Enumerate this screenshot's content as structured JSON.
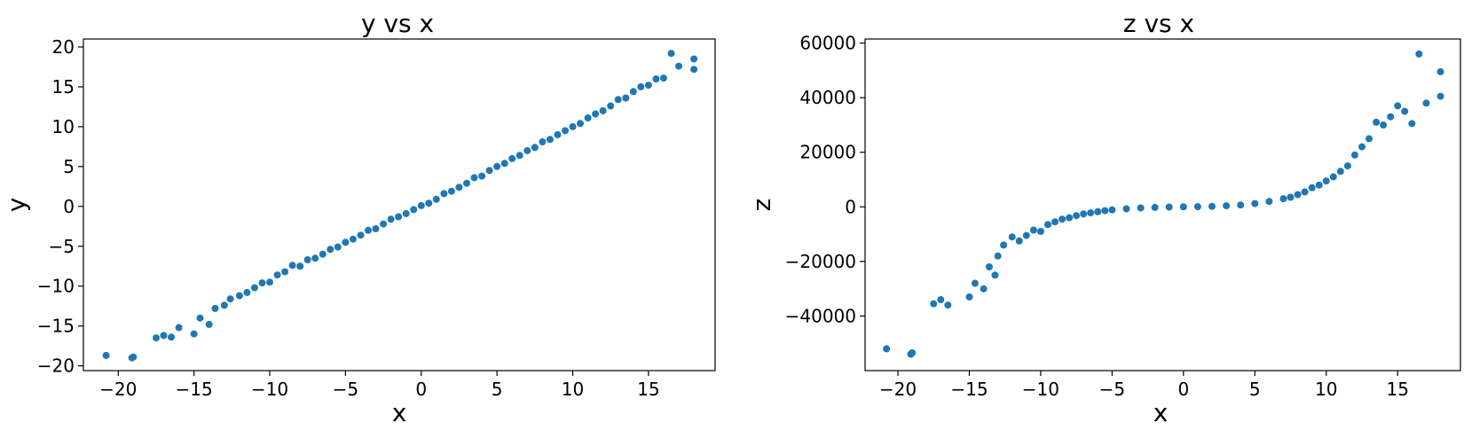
{
  "chart_data": [
    {
      "type": "scatter",
      "title": "y vs x",
      "xlabel": "x",
      "ylabel": "y",
      "xlim": [
        -22.3,
        19.4
      ],
      "ylim": [
        -20.6,
        21.0
      ],
      "xticks": [
        -20,
        -15,
        -10,
        -5,
        0,
        5,
        10,
        15
      ],
      "yticks": [
        -20,
        -15,
        -10,
        -5,
        0,
        5,
        10,
        15,
        20
      ],
      "grid": false,
      "color": "#1f77b4",
      "series": [
        {
          "x": [
            -20.8,
            -19.1,
            -19.0,
            -17.5,
            -17.0,
            -16.5,
            -16.0,
            -15.0,
            -14.6,
            -14.0,
            -13.6,
            -13.0,
            -12.6,
            -12.0,
            -11.5,
            -11.0,
            -10.5,
            -10.0,
            -9.5,
            -9.0,
            -8.5,
            -8.0,
            -7.5,
            -7.0,
            -6.5,
            -6.0,
            -5.5,
            -5.0,
            -4.5,
            -4.0,
            -3.5,
            -3.0,
            -2.5,
            -2.0,
            -1.5,
            -1.0,
            -0.5,
            0.0,
            0.5,
            1.0,
            1.5,
            2.0,
            2.5,
            3.0,
            3.5,
            4.0,
            4.5,
            5.0,
            5.5,
            6.0,
            6.5,
            7.0,
            7.5,
            8.0,
            8.5,
            9.0,
            9.5,
            10.0,
            10.5,
            11.0,
            11.5,
            12.0,
            12.5,
            13.0,
            13.5,
            14.0,
            14.5,
            15.0,
            15.5,
            16.0,
            16.5,
            17.0,
            18.0,
            18.0
          ],
          "y": [
            -18.7,
            -19.0,
            -18.9,
            -16.5,
            -16.2,
            -16.4,
            -15.2,
            -16.0,
            -14.0,
            -14.8,
            -12.8,
            -12.4,
            -11.6,
            -11.2,
            -10.8,
            -10.2,
            -9.6,
            -9.5,
            -8.6,
            -8.2,
            -7.4,
            -7.5,
            -6.7,
            -6.5,
            -6.0,
            -5.4,
            -5.1,
            -4.5,
            -4.1,
            -3.6,
            -3.0,
            -2.8,
            -2.2,
            -1.6,
            -1.3,
            -0.9,
            -0.4,
            0.1,
            0.4,
            0.9,
            1.6,
            1.9,
            2.4,
            2.9,
            3.6,
            3.8,
            4.5,
            5.0,
            5.4,
            6.0,
            6.4,
            7.0,
            7.4,
            8.1,
            8.4,
            9.0,
            9.5,
            10.0,
            10.4,
            11.1,
            11.6,
            12.0,
            12.6,
            13.4,
            13.6,
            14.4,
            15.0,
            15.2,
            16.0,
            16.1,
            19.2,
            17.6,
            17.2,
            18.5
          ]
        }
      ]
    },
    {
      "type": "scatter",
      "title": "z vs x",
      "xlabel": "x",
      "ylabel": "z",
      "xlim": [
        -22.3,
        19.4
      ],
      "ylim": [
        -60000,
        61500
      ],
      "xticks": [
        -20,
        -15,
        -10,
        -5,
        0,
        5,
        10,
        15
      ],
      "yticks": [
        -40000,
        -20000,
        0,
        20000,
        40000,
        60000
      ],
      "ytick_labels": [
        "−40000",
        "−20000",
        "0",
        "20000",
        "40000",
        "60000"
      ],
      "grid": false,
      "color": "#1f77b4",
      "series": [
        {
          "x": [
            -20.8,
            -19.1,
            -19.0,
            -17.5,
            -17.0,
            -16.5,
            -15.0,
            -14.6,
            -14.0,
            -13.6,
            -13.2,
            -13.0,
            -12.6,
            -12.0,
            -11.5,
            -11.0,
            -10.5,
            -10.0,
            -9.5,
            -9.0,
            -8.5,
            -8.0,
            -7.5,
            -7.0,
            -6.5,
            -6.0,
            -5.5,
            -5.0,
            -4.0,
            -3.0,
            -2.0,
            -1.0,
            0.0,
            1.0,
            2.0,
            3.0,
            4.0,
            5.0,
            6.0,
            7.0,
            7.5,
            8.0,
            8.5,
            9.0,
            9.5,
            10.0,
            10.5,
            11.0,
            11.5,
            12.0,
            12.5,
            13.0,
            13.5,
            14.0,
            14.5,
            15.0,
            15.5,
            16.0,
            16.5,
            17.0,
            18.0,
            18.0
          ],
          "y": [
            -52000,
            -54000,
            -53500,
            -35500,
            -34000,
            -36000,
            -33000,
            -28000,
            -30000,
            -22000,
            -25000,
            -18000,
            -14000,
            -11000,
            -12500,
            -10500,
            -8500,
            -9000,
            -6500,
            -5500,
            -4500,
            -4000,
            -3200,
            -2600,
            -2200,
            -1800,
            -1400,
            -1100,
            -700,
            -400,
            -200,
            -60,
            0,
            60,
            200,
            400,
            700,
            1200,
            2000,
            3000,
            3500,
            4500,
            5500,
            7000,
            8000,
            9500,
            11000,
            13000,
            15000,
            19000,
            22000,
            25000,
            31000,
            30000,
            33000,
            37000,
            35000,
            30500,
            56000,
            38000,
            49500,
            40500
          ]
        }
      ]
    }
  ]
}
